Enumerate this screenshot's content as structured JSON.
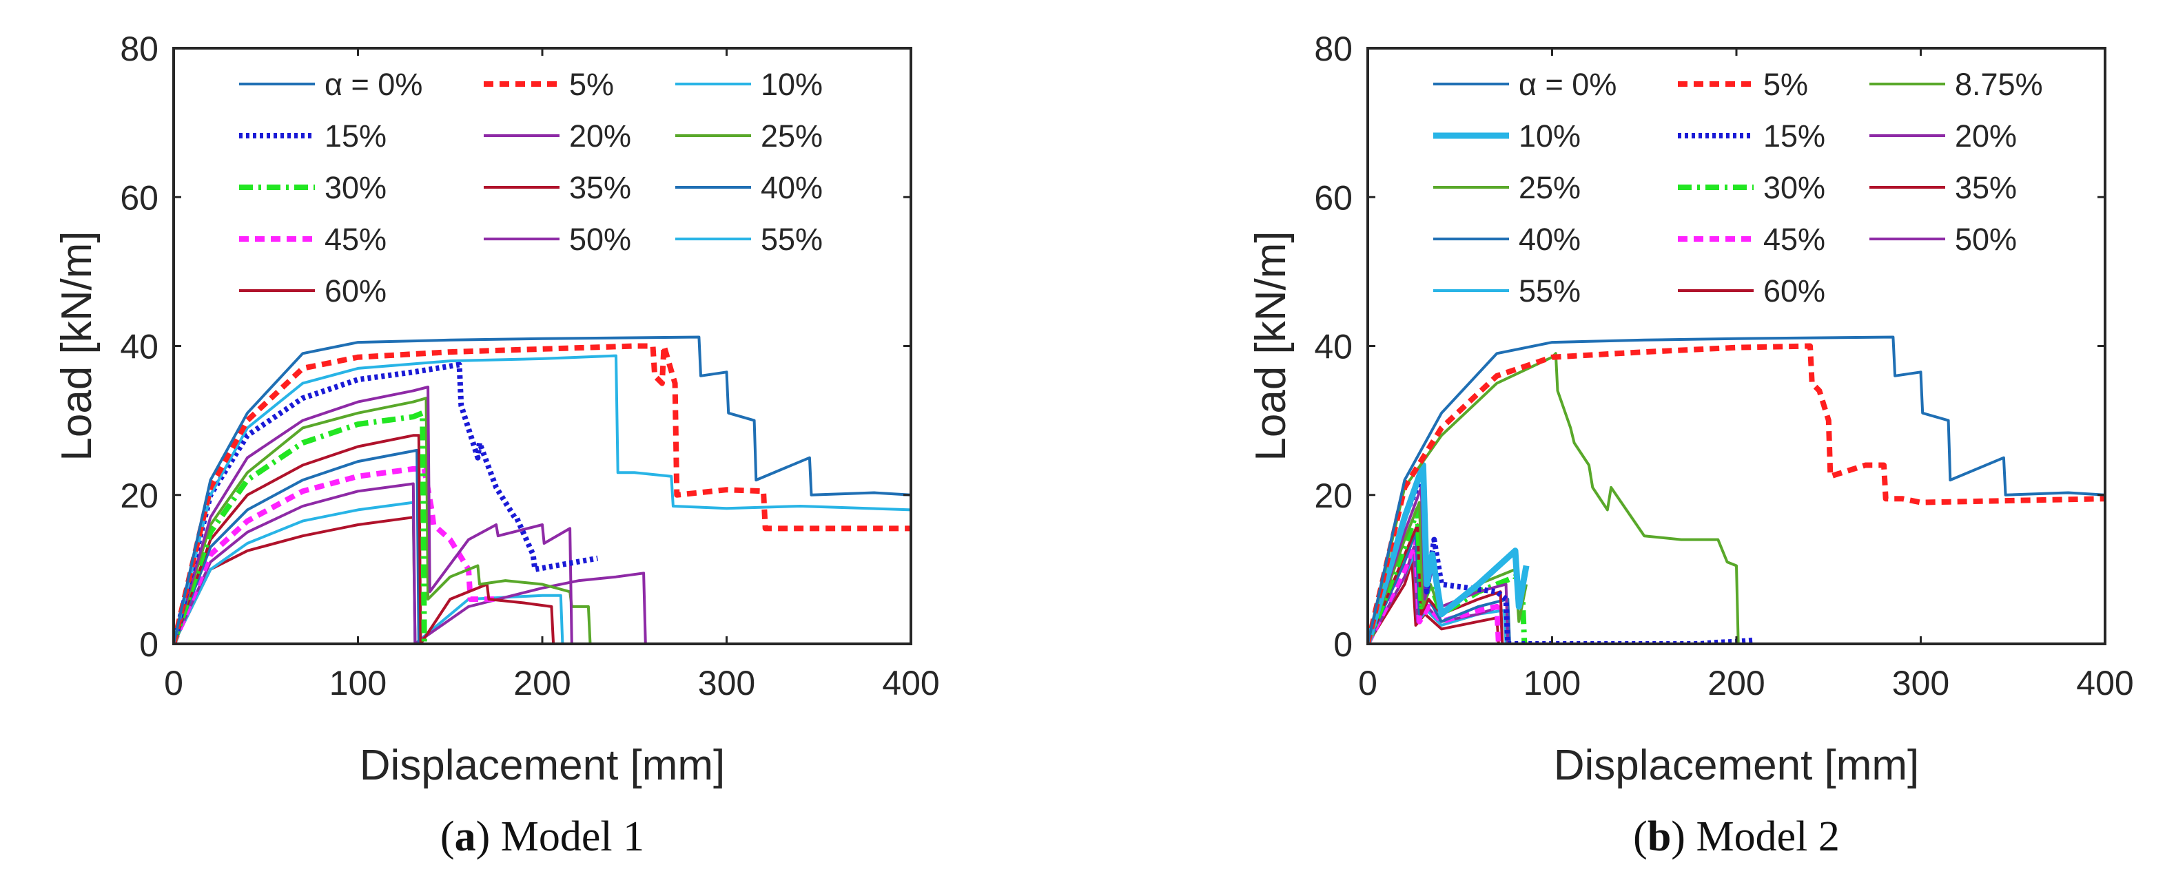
{
  "chart_data": [
    {
      "type": "line",
      "caption_label": "a",
      "caption_text": "Model 1",
      "xlabel": "Displacement [mm]",
      "ylabel": "Load [kN/m]",
      "xlim": [
        0,
        400
      ],
      "ylim": [
        0,
        80
      ],
      "xticks": [
        "0",
        "100",
        "200",
        "300",
        "400"
      ],
      "yticks": [
        "0",
        "20",
        "40",
        "60",
        "80"
      ],
      "grid": false,
      "legend_position": "top",
      "legend_columns": 3,
      "series": [
        {
          "name": "α = 0%",
          "color": "#1f6fb4",
          "dash": "solid",
          "width": 4,
          "x": [
            0,
            20,
            40,
            70,
            100,
            150,
            200,
            285,
            286,
            300,
            301,
            315,
            316,
            345,
            346,
            380,
            400
          ],
          "y": [
            0,
            22,
            31,
            39,
            40.5,
            40.8,
            41,
            41.2,
            36,
            36.5,
            31,
            30,
            22,
            25,
            20,
            20.3,
            20
          ]
        },
        {
          "name": "5%",
          "color": "#ff1f1f",
          "dash": "14,9",
          "width": 8,
          "x": [
            0,
            20,
            40,
            70,
            100,
            150,
            200,
            250,
            260,
            261,
            265,
            266,
            272,
            273,
            300,
            320,
            321,
            350,
            400
          ],
          "y": [
            0,
            21,
            30,
            37,
            38.5,
            39.2,
            39.6,
            40,
            40,
            36,
            35,
            40,
            35,
            20,
            20.7,
            20.5,
            15.5,
            15.5,
            15.5
          ]
        },
        {
          "name": "10%",
          "color": "#28b4e6",
          "dash": "solid",
          "width": 4,
          "x": [
            0,
            20,
            40,
            70,
            100,
            150,
            200,
            240,
            241,
            250,
            270,
            271,
            300,
            340,
            400
          ],
          "y": [
            0,
            20,
            29,
            35,
            37,
            38,
            38.3,
            38.7,
            23,
            23,
            22.5,
            18.5,
            18.2,
            18.5,
            18
          ]
        },
        {
          "name": "15%",
          "color": "#1a1ad6",
          "dash": "5,5",
          "width": 8,
          "x": [
            0,
            20,
            40,
            70,
            100,
            130,
            155,
            156,
            165,
            166,
            175,
            185,
            186,
            195,
            196,
            230
          ],
          "y": [
            0,
            20,
            28,
            33,
            35.5,
            36.5,
            37.5,
            32,
            25,
            27,
            21,
            17,
            17,
            12,
            10,
            11.5
          ]
        },
        {
          "name": "20%",
          "color": "#8e2aa6",
          "dash": "solid",
          "width": 4,
          "x": [
            0,
            20,
            40,
            70,
            100,
            130,
            138,
            139,
            160,
            175,
            176,
            200,
            201,
            215,
            216
          ],
          "y": [
            0,
            17,
            25,
            30,
            32.5,
            34,
            34.5,
            7,
            14,
            16,
            14.5,
            16,
            13.5,
            15.5,
            0
          ]
        },
        {
          "name": "25%",
          "color": "#59a82a",
          "dash": "solid",
          "width": 4,
          "x": [
            0,
            20,
            40,
            70,
            100,
            130,
            137,
            138,
            150,
            165,
            166,
            180,
            200,
            215,
            216,
            225,
            226
          ],
          "y": [
            0,
            16,
            23,
            29,
            31,
            32.5,
            33,
            6,
            9,
            10.5,
            8,
            8.5,
            8,
            7,
            5,
            5,
            0
          ]
        },
        {
          "name": "30%",
          "color": "#22e622",
          "dash": "20,8,4,8",
          "width": 8,
          "x": [
            0,
            20,
            40,
            70,
            100,
            130,
            135,
            136
          ],
          "y": [
            0,
            15,
            22,
            27,
            29.5,
            30.5,
            31,
            0
          ]
        },
        {
          "name": "35%",
          "color": "#b0122b",
          "dash": "solid",
          "width": 4,
          "x": [
            0,
            20,
            40,
            70,
            100,
            130,
            133,
            134,
            150,
            170,
            171,
            190,
            205,
            206
          ],
          "y": [
            0,
            14,
            20,
            24,
            26.5,
            28,
            28,
            0,
            6,
            8,
            6,
            5.5,
            5,
            0
          ]
        },
        {
          "name": "40%",
          "color": "#1f6fb4",
          "dash": "solid",
          "width": 4,
          "x": [
            0,
            20,
            40,
            70,
            100,
            132,
            133
          ],
          "y": [
            0,
            13,
            18,
            22,
            24.5,
            26,
            0
          ]
        },
        {
          "name": "45%",
          "color": "#ff22ff",
          "dash": "14,9",
          "width": 8,
          "x": [
            0,
            20,
            40,
            70,
            100,
            130,
            136,
            140,
            141,
            150,
            160,
            161,
            175
          ],
          "y": [
            0,
            12,
            16.5,
            20.5,
            22.5,
            23.5,
            23.5,
            18,
            16,
            14,
            10,
            6,
            6
          ]
        },
        {
          "name": "50%",
          "color": "#8e2aa6",
          "dash": "solid",
          "width": 4,
          "x": [
            0,
            20,
            40,
            70,
            100,
            130,
            131,
            160,
            200,
            220,
            240,
            255,
            256
          ],
          "y": [
            0,
            11,
            15,
            18.5,
            20.5,
            21.5,
            0,
            5,
            7.5,
            8.5,
            9,
            9.5,
            0
          ]
        },
        {
          "name": "55%",
          "color": "#28b4e6",
          "dash": "solid",
          "width": 4,
          "x": [
            0,
            20,
            40,
            70,
            100,
            130,
            131,
            160,
            200,
            210,
            211
          ],
          "y": [
            0,
            10,
            13.5,
            16.5,
            18,
            19,
            0,
            6,
            6.5,
            6.5,
            0
          ]
        },
        {
          "name": "60%",
          "color": "#b0122b",
          "dash": "solid",
          "width": 4,
          "x": [
            0,
            20,
            40,
            70,
            100,
            130,
            131
          ],
          "y": [
            0,
            10,
            12.5,
            14.5,
            16,
            17,
            0
          ]
        }
      ]
    },
    {
      "type": "line",
      "caption_label": "b",
      "caption_text": "Model 2",
      "xlabel": "Displacement [mm]",
      "ylabel": "Load [kN/m]",
      "xlim": [
        0,
        400
      ],
      "ylim": [
        0,
        80
      ],
      "xticks": [
        "0",
        "100",
        "200",
        "300",
        "400"
      ],
      "yticks": [
        "0",
        "20",
        "40",
        "60",
        "80"
      ],
      "grid": false,
      "legend_position": "top",
      "legend_columns": 3,
      "series": [
        {
          "name": "α = 0%",
          "color": "#1f6fb4",
          "dash": "solid",
          "width": 4,
          "x": [
            0,
            20,
            40,
            70,
            100,
            150,
            200,
            285,
            286,
            300,
            301,
            315,
            316,
            345,
            346,
            380,
            400
          ],
          "y": [
            0,
            22,
            31,
            39,
            40.5,
            40.8,
            41,
            41.2,
            36,
            36.5,
            31,
            30,
            22,
            25,
            20,
            20.3,
            20
          ]
        },
        {
          "name": "5%",
          "color": "#ff1f1f",
          "dash": "14,9",
          "width": 8,
          "x": [
            0,
            20,
            40,
            70,
            100,
            150,
            200,
            240,
            241,
            245,
            250,
            251,
            270,
            280,
            281,
            290,
            300,
            400
          ],
          "y": [
            0,
            21,
            29,
            36,
            38.5,
            39.2,
            39.8,
            40,
            35,
            34,
            30,
            22.5,
            24,
            24,
            19.5,
            19.5,
            19,
            19.5
          ]
        },
        {
          "name": "8.75%",
          "color": "#59a82a",
          "dash": "solid",
          "width": 4,
          "x": [
            0,
            20,
            40,
            70,
            100,
            102,
            103,
            110,
            112,
            120,
            122,
            130,
            132,
            150,
            170,
            190,
            195,
            200,
            201,
            205,
            206
          ],
          "y": [
            0,
            21,
            28,
            35,
            38.5,
            39,
            34,
            29,
            27,
            24,
            21,
            18,
            21,
            14.5,
            14,
            14,
            11,
            10.5,
            0,
            0,
            0
          ]
        },
        {
          "name": "10%",
          "color": "#28b4e6",
          "dash": "solid",
          "width": 9,
          "x": [
            0,
            20,
            30,
            32,
            35,
            40,
            60,
            80,
            82,
            86
          ],
          "y": [
            0,
            17,
            24,
            8,
            12,
            4,
            8,
            12.5,
            5,
            10.5
          ]
        },
        {
          "name": "15%",
          "color": "#1a1ad6",
          "dash": "5,5",
          "width": 8,
          "x": [
            0,
            20,
            30,
            32,
            36,
            40,
            70,
            75,
            76,
            170,
            180,
            190,
            200,
            210
          ],
          "y": [
            0,
            17,
            23,
            7,
            14,
            8,
            7,
            6,
            0,
            0,
            0,
            0.2,
            0.3,
            0.5
          ]
        },
        {
          "name": "20%",
          "color": "#8e2aa6",
          "dash": "solid",
          "width": 4,
          "x": [
            0,
            20,
            29,
            31,
            35,
            40,
            60,
            75,
            76
          ],
          "y": [
            0,
            15,
            21,
            6,
            10,
            5,
            7,
            8,
            0
          ]
        },
        {
          "name": "25%",
          "color": "#59a82a",
          "dash": "solid",
          "width": 4,
          "x": [
            0,
            20,
            28,
            30,
            34,
            40,
            60,
            80,
            82,
            86
          ],
          "y": [
            0,
            14,
            19,
            5,
            8,
            4,
            8,
            10,
            3,
            8
          ]
        },
        {
          "name": "30%",
          "color": "#22e622",
          "dash": "20,8,4,8",
          "width": 8,
          "x": [
            0,
            20,
            27,
            29,
            34,
            40,
            60,
            80,
            84,
            85
          ],
          "y": [
            0,
            13,
            18,
            5,
            8,
            4,
            7,
            9,
            6,
            0
          ]
        },
        {
          "name": "35%",
          "color": "#b0122b",
          "dash": "solid",
          "width": 4,
          "x": [
            0,
            20,
            27,
            29,
            33,
            40,
            60,
            72,
            73
          ],
          "y": [
            0,
            12,
            16,
            4,
            6,
            4,
            6,
            7,
            0
          ]
        },
        {
          "name": "40%",
          "color": "#1f6fb4",
          "dash": "solid",
          "width": 4,
          "x": [
            0,
            20,
            26,
            28,
            33,
            40,
            60,
            76,
            77
          ],
          "y": [
            0,
            11,
            15,
            4,
            6,
            3,
            5,
            6,
            0
          ]
        },
        {
          "name": "45%",
          "color": "#ff22ff",
          "dash": "14,9",
          "width": 8,
          "x": [
            0,
            20,
            26,
            28,
            33,
            40,
            60,
            70,
            71
          ],
          "y": [
            0,
            10,
            14,
            3,
            5,
            3,
            4.5,
            5,
            0
          ]
        },
        {
          "name": "50%",
          "color": "#8e2aa6",
          "dash": "solid",
          "width": 4,
          "x": [
            0,
            20,
            25,
            27,
            32,
            40,
            60,
            72,
            73
          ],
          "y": [
            0,
            9,
            13,
            3,
            5,
            3,
            4,
            5,
            0
          ]
        },
        {
          "name": "55%",
          "color": "#28b4e6",
          "dash": "solid",
          "width": 4,
          "x": [
            0,
            20,
            25,
            27,
            32,
            40,
            60,
            74,
            75
          ],
          "y": [
            0,
            9,
            12,
            3,
            4.5,
            2.5,
            4,
            4.5,
            0
          ]
        },
        {
          "name": "60%",
          "color": "#b0122b",
          "dash": "solid",
          "width": 4,
          "x": [
            0,
            20,
            24,
            26,
            31,
            40,
            60,
            70,
            71
          ],
          "y": [
            0,
            8,
            11,
            2.5,
            4,
            2,
            3,
            3.5,
            0
          ]
        }
      ]
    }
  ]
}
